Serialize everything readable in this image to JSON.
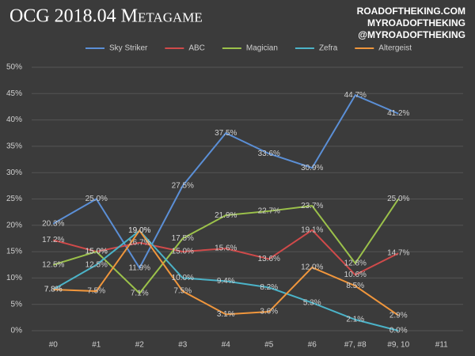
{
  "chart_data": {
    "type": "line",
    "title": "OCG 2018.04 Metagame",
    "annotations": [
      "ROADOFTHEKING.COM",
      "MYROADOFTHEKING",
      "@MYROADOFTHEKING"
    ],
    "categories": [
      "#0",
      "#1",
      "#2",
      "#3",
      "#4",
      "#5",
      "#6",
      "#7, #8",
      "#9, 10",
      "#11"
    ],
    "series": [
      {
        "name": "Sky Striker",
        "color": "#5b8fd6",
        "values": [
          20.3,
          25.0,
          11.9,
          27.5,
          37.5,
          33.6,
          30.9,
          44.7,
          41.2,
          null
        ],
        "value_labels": [
          "20.3%",
          "25.0%",
          "11.9%",
          "27.5%",
          "37.5%",
          "33.6%",
          "30.9%",
          "44.7%",
          "41.2%",
          null
        ]
      },
      {
        "name": "ABC",
        "color": "#d04a4a",
        "values": [
          17.2,
          15.0,
          16.7,
          15.0,
          15.6,
          13.6,
          19.1,
          10.6,
          14.7,
          null
        ],
        "value_labels": [
          "17.2%",
          "15.0%",
          "16.7%",
          "15.0%",
          "15.6%",
          "13.6%",
          "19.1%",
          "10.6%",
          "14.7%",
          null
        ]
      },
      {
        "name": "Magician",
        "color": "#9bc14a",
        "values": [
          12.5,
          15.0,
          7.1,
          17.5,
          21.9,
          22.7,
          23.7,
          12.8,
          25.0,
          null
        ],
        "value_labels": [
          "12.5%",
          "15.0%",
          "7.1%",
          "17.5%",
          "21.9%",
          "22.7%",
          "23.7%",
          "12.8%",
          "25.0%",
          null
        ]
      },
      {
        "name": "Zefra",
        "color": "#4bb3c8",
        "values": [
          7.8,
          12.5,
          19.0,
          10.0,
          9.4,
          8.2,
          5.3,
          2.1,
          0.0,
          null
        ],
        "value_labels": [
          "7.8%",
          "12.5%",
          "19.0%",
          "10.0%",
          "9.4%",
          "8.2%",
          "5.3%",
          "2.1%",
          "0.0%",
          null
        ]
      },
      {
        "name": "Altergeist",
        "color": "#f0963c",
        "values": [
          7.8,
          7.5,
          19.0,
          7.5,
          3.1,
          3.6,
          12.0,
          8.5,
          2.9,
          null
        ],
        "value_labels": [
          "7.8%",
          "7.5%",
          "19.0%",
          "7.5%",
          "3.1%",
          "3.6%",
          "12.0%",
          "8.5%",
          "2.9%",
          null
        ]
      }
    ],
    "ylim": [
      0,
      50
    ],
    "yticks": [
      {
        "value": 0,
        "label": "0%"
      },
      {
        "value": 5,
        "label": "5%"
      },
      {
        "value": 10,
        "label": "10%"
      },
      {
        "value": 15,
        "label": "15%"
      },
      {
        "value": 20,
        "label": "20%"
      },
      {
        "value": 25,
        "label": "25%"
      },
      {
        "value": 30,
        "label": "30%"
      },
      {
        "value": 35,
        "label": "35%"
      },
      {
        "value": 40,
        "label": "40%"
      },
      {
        "value": 45,
        "label": "45%"
      },
      {
        "value": 50,
        "label": "50%"
      }
    ],
    "grid": true,
    "legend": "top"
  }
}
